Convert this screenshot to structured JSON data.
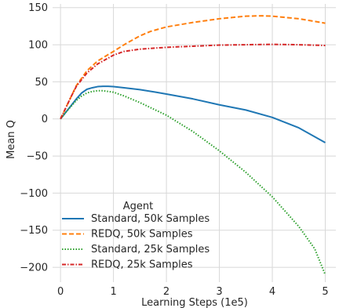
{
  "chart_data": {
    "type": "line",
    "title": "",
    "xlabel": "Learning Steps (1e5)",
    "ylabel": "Mean Q",
    "xlim": [
      -0.15,
      5.2
    ],
    "ylim": [
      -220,
      155
    ],
    "xticks": [
      0,
      1,
      2,
      3,
      4,
      5
    ],
    "yticks": [
      150,
      100,
      50,
      0,
      -50,
      -100,
      -150,
      -200
    ],
    "xtick_labels": [
      "0",
      "1",
      "2",
      "3",
      "4",
      "5"
    ],
    "ytick_labels": [
      "150",
      "100",
      "50",
      "0",
      "−50",
      "−100",
      "−150",
      "−200"
    ],
    "grid": true,
    "legend": {
      "title": "Agent",
      "placement": "lower-left"
    },
    "series": [
      {
        "name": "Standard, 50k Samples",
        "color": "#1f77b4",
        "dash": "solid",
        "x": [
          0,
          0.1,
          0.2,
          0.3,
          0.4,
          0.5,
          0.6,
          0.7,
          0.8,
          0.9,
          1.0,
          1.2,
          1.5,
          1.8,
          2.0,
          2.5,
          3.0,
          3.5,
          4.0,
          4.5,
          5.0
        ],
        "y": [
          0,
          9,
          18,
          27,
          35,
          40,
          42,
          43.5,
          44,
          44,
          43.5,
          42,
          39.5,
          36,
          33.5,
          27,
          19,
          12,
          2,
          -12,
          -32
        ]
      },
      {
        "name": "REDQ, 50k Samples",
        "color": "#ff7f0e",
        "dash": "dashed",
        "x": [
          0,
          0.1,
          0.2,
          0.3,
          0.5,
          0.7,
          1.0,
          1.2,
          1.5,
          1.7,
          2.0,
          2.5,
          3.0,
          3.5,
          3.8,
          4.0,
          4.5,
          5.0
        ],
        "y": [
          0,
          15,
          30,
          45,
          65,
          78,
          91,
          100,
          112,
          118,
          124,
          130,
          135,
          138.5,
          139,
          138.5,
          135,
          129
        ]
      },
      {
        "name": "Standard, 25k Samples",
        "color": "#2ca02c",
        "dash": "dotted",
        "x": [
          0,
          0.1,
          0.2,
          0.3,
          0.4,
          0.5,
          0.6,
          0.7,
          0.8,
          1.0,
          1.2,
          1.5,
          2.0,
          2.5,
          3.0,
          3.5,
          4.0,
          4.5,
          4.8,
          5.0
        ],
        "y": [
          0,
          9,
          17,
          25,
          31,
          35,
          37,
          38,
          38,
          36,
          31,
          22,
          5,
          -17,
          -43,
          -72,
          -105,
          -145,
          -175,
          -210
        ]
      },
      {
        "name": "REDQ, 25k Samples",
        "color": "#d62728",
        "dash": "dashdot",
        "x": [
          0,
          0.1,
          0.2,
          0.3,
          0.5,
          0.7,
          1.0,
          1.2,
          1.5,
          2.0,
          2.5,
          3.0,
          3.5,
          4.0,
          4.5,
          5.0
        ],
        "y": [
          0,
          15,
          30,
          44,
          62,
          74,
          86,
          91,
          94,
          96.5,
          98,
          99.5,
          100,
          100.5,
          100,
          99
        ]
      }
    ]
  }
}
